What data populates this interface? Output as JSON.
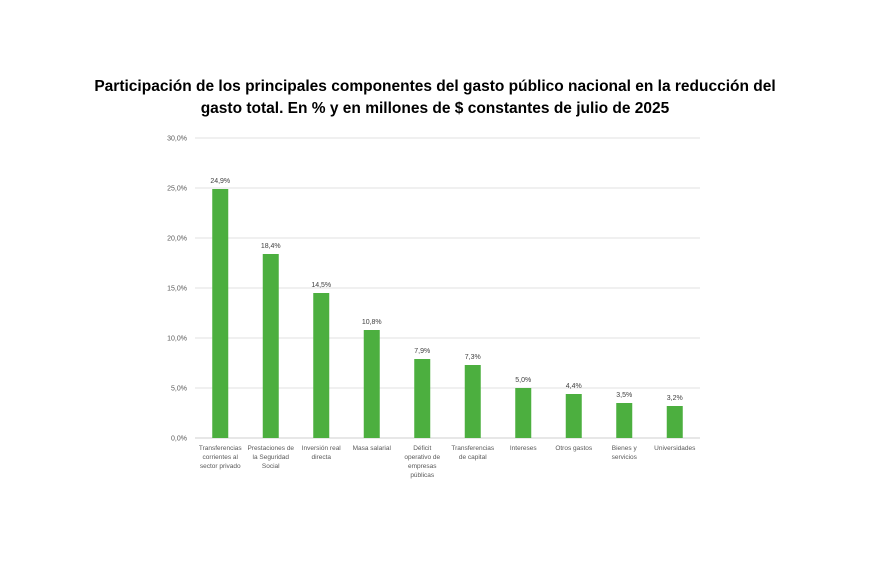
{
  "title_lines": [
    "Participación de los principales componentes del gasto público nacional en la reducción del",
    "gasto total. En % y en millones de $ constantes de julio de 2025"
  ],
  "colors": {
    "bar": "#4caf3f",
    "grid": "#d9d9d9"
  },
  "chart_data": {
    "type": "bar",
    "title": "Participación de los principales componentes del gasto público nacional en la reducción del gasto total. En % y en millones de $ constantes de julio de 2025",
    "categories": [
      [
        "Transferencias",
        "corrientes al",
        "sector privado"
      ],
      [
        "Prestaciones de",
        "la Seguridad",
        "Social"
      ],
      [
        "Inversión real",
        "directa"
      ],
      [
        "Masa salarial"
      ],
      [
        "Déficit",
        "operativo de",
        "empresas",
        "públicas"
      ],
      [
        "Transferencias",
        "de capital"
      ],
      [
        "Intereses"
      ],
      [
        "Otros gastos"
      ],
      [
        "Bienes y",
        "servicios"
      ],
      [
        "Universidades"
      ]
    ],
    "values": [
      24.9,
      18.4,
      14.5,
      10.8,
      7.9,
      7.3,
      5.0,
      4.4,
      3.5,
      3.2
    ],
    "data_labels": [
      "24,9%",
      "18,4%",
      "14,5%",
      "10,8%",
      "7,9%",
      "7,3%",
      "5,0%",
      "4,4%",
      "3,5%",
      "3,2%"
    ],
    "yticks": [
      0,
      5,
      10,
      15,
      20,
      25,
      30
    ],
    "ytick_labels": [
      "0,0%",
      "5,0%",
      "10,0%",
      "15,0%",
      "20,0%",
      "25,0%",
      "30,0%"
    ],
    "ylim": [
      0,
      30
    ],
    "xlabel": "",
    "ylabel": "",
    "grid": true,
    "legend": "none"
  }
}
